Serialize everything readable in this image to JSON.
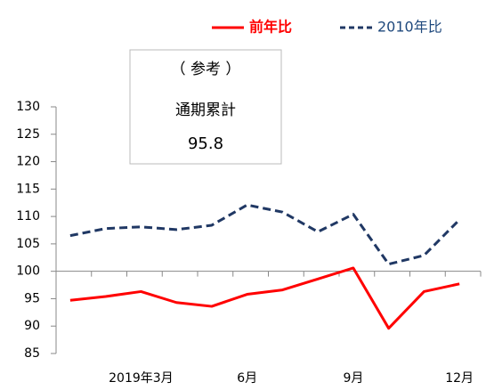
{
  "chart_data": {
    "type": "line",
    "categories": [
      null,
      null,
      "2019年3月",
      null,
      null,
      "6月",
      null,
      null,
      "9月",
      null,
      null,
      "12月"
    ],
    "series": [
      {
        "name": "前年比",
        "color": "#ff0000",
        "dash": false,
        "values": [
          94.7,
          95.4,
          96.3,
          94.3,
          93.6,
          95.8,
          96.6,
          98.6,
          100.6,
          89.6,
          96.3,
          97.7
        ]
      },
      {
        "name": "2010年比",
        "color": "#203864",
        "dash": true,
        "values": [
          106.5,
          107.8,
          108.1,
          107.6,
          108.4,
          112.1,
          110.8,
          107.2,
          110.4,
          101.3,
          102.9,
          109.4
        ]
      }
    ],
    "ylim": [
      85,
      130
    ],
    "yticks": [
      85,
      90,
      95,
      100,
      105,
      110,
      115,
      120,
      125,
      130
    ],
    "baseline": 100,
    "annotation": {
      "heading": "（ 参考 ）",
      "label": "通期累計",
      "value": 95.8
    }
  }
}
